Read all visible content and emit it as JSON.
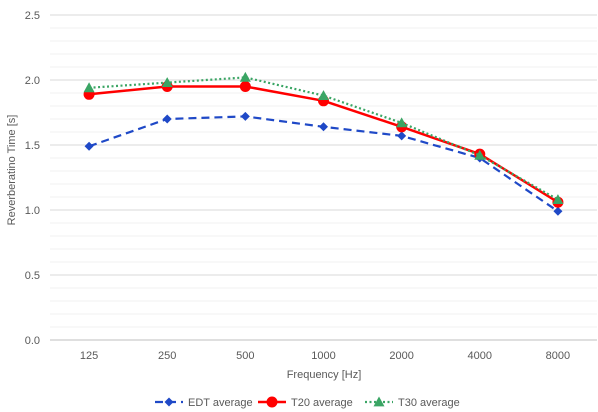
{
  "chart_data": {
    "type": "line",
    "categories": [
      "125",
      "250",
      "500",
      "1000",
      "2000",
      "4000",
      "8000"
    ],
    "series": [
      {
        "name": "EDT average",
        "values": [
          1.49,
          1.7,
          1.72,
          1.64,
          1.57,
          1.4,
          0.99
        ],
        "color": "#1f49c7",
        "line": "dashed",
        "marker": "diamond"
      },
      {
        "name": "T20 average",
        "values": [
          1.89,
          1.95,
          1.95,
          1.84,
          1.64,
          1.43,
          1.06
        ],
        "color": "#ff0000",
        "line": "solid",
        "marker": "circle"
      },
      {
        "name": "T30 average",
        "values": [
          1.94,
          1.98,
          2.02,
          1.88,
          1.67,
          1.42,
          1.08
        ],
        "color": "#3aa564",
        "line": "dotted",
        "marker": "triangle"
      }
    ],
    "xlabel": "Frequency [Hz]",
    "ylabel": "Reverberatino Time [s]",
    "ylim": [
      0,
      2.5
    ],
    "yticks": [
      "0.0",
      "0.5",
      "1.0",
      "1.5",
      "2.0",
      "2.5"
    ],
    "grid": true,
    "minor_grid": true,
    "legend": "bottom"
  }
}
